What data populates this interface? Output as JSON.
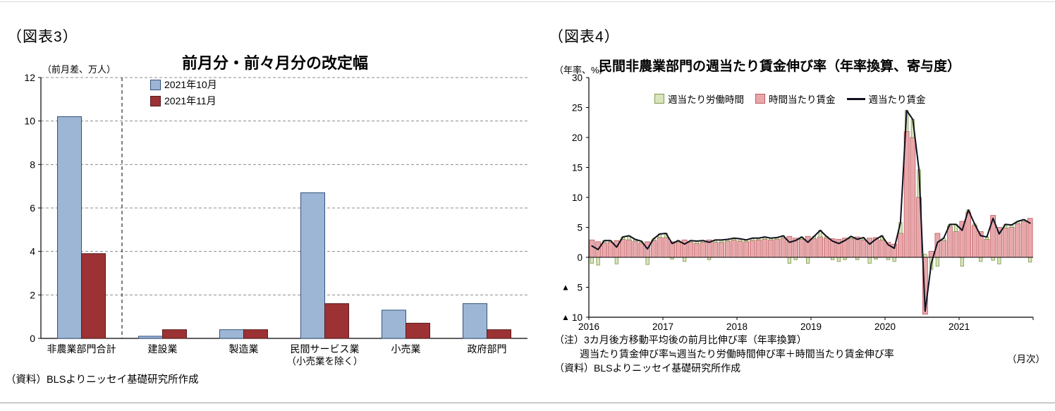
{
  "figure3": {
    "tag": "（図表3）",
    "title": "前月分・前々月分の改定幅",
    "unit_label": "（前月差、万人）",
    "source": "（資料）BLSよりニッセイ基礎研究所作成"
  },
  "figure4": {
    "tag": "（図表4）",
    "title": "民間非農業部門の週当たり賃金伸び率（年率換算、寄与度）",
    "unit_label": "（年率、%）",
    "notes": [
      "（注）3カ月後方移動平均後の前月比伸び率（年率換算）",
      "週当たり賃金伸び率≒週当たり労働時間伸び率＋時間当たり賃金伸び率",
      "（資料）BLSよりニッセイ基礎研究所作成"
    ],
    "freq_label": "（月次）"
  },
  "chart_data": [
    {
      "id": "fig3",
      "type": "bar",
      "title": "前月分・前々月分の改定幅",
      "ylabel": "（前月差、万人）",
      "ylim": [
        0,
        12
      ],
      "yticks": [
        0,
        2,
        4,
        6,
        8,
        10,
        12
      ],
      "grid": "dashed-horizontal",
      "legend_position": "top-left-inside",
      "divider_after_category": 0,
      "categories": [
        {
          "label": "非農業部門合計"
        },
        {
          "label": "建設業"
        },
        {
          "label": "製造業"
        },
        {
          "label": "民間サービス業",
          "sub": "（小売業を除く）"
        },
        {
          "label": "小売業"
        },
        {
          "label": "政府部門"
        }
      ],
      "series": [
        {
          "name": "2021年10月",
          "color": "#9DB6D5",
          "border": "#33517B",
          "values": [
            10.2,
            0.1,
            0.4,
            6.7,
            1.3,
            1.6
          ]
        },
        {
          "name": "2021年11月",
          "color": "#9C3234",
          "border": "#581C1D",
          "values": [
            3.9,
            0.4,
            0.4,
            1.6,
            0.7,
            0.4
          ]
        }
      ]
    },
    {
      "id": "fig4",
      "type": "bar",
      "stacked": true,
      "title": "民間非農業部門の週当たり賃金伸び率（年率換算、寄与度）",
      "ylabel": "（年率、%）",
      "xlabel": "（月次）",
      "ylim": [
        -10,
        30
      ],
      "yticks": [
        30,
        25,
        20,
        15,
        10,
        5,
        0,
        -5,
        -10
      ],
      "negative_tick_marker": "▲",
      "x_years": [
        "2016",
        "2017",
        "2018",
        "2019",
        "2020",
        "2021"
      ],
      "months_per_year": 12,
      "legend_position": "top-center-inside",
      "series": [
        {
          "name": "週当たり労働時間",
          "kind": "bar",
          "color": "#D8E4BC",
          "border": "#7E9B49",
          "values": [
            -1.0,
            -1.3,
            0.4,
            0.3,
            -1.1,
            0.4,
            0.7,
            0.3,
            0.3,
            -1.2,
            0.3,
            0.6,
            0.7,
            -0.3,
            0.3,
            -0.7,
            0.3,
            0.4,
            0.3,
            -0.4,
            0.4,
            0.4,
            0.3,
            0.3,
            0.4,
            0.3,
            0.4,
            0.3,
            0.4,
            0.3,
            0.3,
            0.4,
            -1.0,
            -0.4,
            0.4,
            -1.0,
            0.4,
            1.1,
            0.3,
            -0.4,
            -0.7,
            -0.4,
            0.4,
            -0.4,
            0.4,
            -1.0,
            -0.3,
            0.7,
            -0.4,
            -0.7,
            1.8,
            3.5,
            3.0,
            4.6,
            0.5,
            -2.0,
            -1.5,
            0.4,
            0.3,
            1.2,
            -1.5,
            0.4,
            0.3,
            -0.7,
            0.4,
            -0.5,
            -1.1,
            0.6,
            0.4,
            0.4,
            0.3,
            -0.8
          ]
        },
        {
          "name": "時間当たり賃金",
          "kind": "bar",
          "color": "#E8A8AB",
          "border": "#BE5A5E",
          "values": [
            2.9,
            2.6,
            2.4,
            2.5,
            2.8,
            3.0,
            2.9,
            2.7,
            2.4,
            2.6,
            2.8,
            3.3,
            3.3,
            2.6,
            2.5,
            2.9,
            2.5,
            2.3,
            2.5,
            2.9,
            2.5,
            2.5,
            2.7,
            2.9,
            2.7,
            2.6,
            2.8,
            2.9,
            3.0,
            2.9,
            3.0,
            3.2,
            3.5,
            3.2,
            3.0,
            3.5,
            3.1,
            3.4,
            3.2,
            3.1,
            3.0,
            3.2,
            3.1,
            3.4,
            2.9,
            3.2,
            3.3,
            2.9,
            2.5,
            2.2,
            4.0,
            21.0,
            20.0,
            10.0,
            -9.5,
            1.0,
            4.0,
            2.8,
            5.2,
            4.3,
            6.0,
            7.5,
            5.3,
            4.3,
            3.0,
            7.0,
            5.0,
            4.9,
            5.0,
            5.6,
            6.0,
            6.5
          ]
        },
        {
          "name": "週当たり賃金",
          "kind": "line",
          "color": "#10101E",
          "values": [
            1.9,
            1.3,
            2.8,
            2.8,
            1.7,
            3.4,
            3.6,
            3.0,
            2.7,
            1.4,
            3.1,
            3.9,
            4.0,
            2.3,
            2.8,
            2.2,
            2.8,
            2.7,
            2.8,
            2.5,
            2.9,
            2.9,
            3.0,
            3.2,
            3.1,
            2.9,
            3.2,
            3.2,
            3.4,
            3.2,
            3.3,
            3.6,
            2.5,
            2.8,
            3.4,
            2.5,
            3.5,
            4.5,
            3.5,
            2.7,
            2.3,
            2.8,
            3.5,
            3.0,
            3.3,
            2.2,
            3.0,
            3.6,
            2.1,
            1.5,
            5.8,
            24.5,
            23.0,
            14.6,
            -9.0,
            -1.0,
            2.5,
            3.2,
            5.5,
            5.5,
            4.5,
            7.9,
            5.6,
            3.6,
            3.4,
            6.5,
            3.9,
            5.5,
            5.4,
            6.0,
            6.3,
            5.7
          ]
        }
      ]
    }
  ]
}
